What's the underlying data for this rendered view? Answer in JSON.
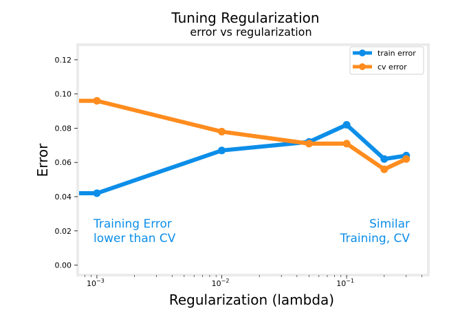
{
  "chart_data": {
    "type": "line",
    "title": "Tuning Regularization",
    "subtitle": "error vs regularization",
    "xlabel": "Regularization (lambda)",
    "ylabel": "Error",
    "xscale": "log",
    "xlim": [
      0.00072,
      0.44
    ],
    "ylim": [
      -0.005,
      0.128
    ],
    "grid": false,
    "legend_position": "top-right",
    "xticks": [
      {
        "value": 0.001,
        "base": "10",
        "exp": "−3"
      },
      {
        "value": 0.01,
        "base": "10",
        "exp": "−2"
      },
      {
        "value": 0.1,
        "base": "10",
        "exp": "−1"
      }
    ],
    "yticks": [
      {
        "value": 0.0,
        "label": "0.00"
      },
      {
        "value": 0.02,
        "label": "0.02"
      },
      {
        "value": 0.04,
        "label": "0.04"
      },
      {
        "value": 0.06,
        "label": "0.06"
      },
      {
        "value": 0.08,
        "label": "0.08"
      },
      {
        "value": 0.1,
        "label": "0.10"
      },
      {
        "value": 0.12,
        "label": "0.12"
      }
    ],
    "series": [
      {
        "name": "train error",
        "color": "#0c8ee8",
        "x": [
          0.0,
          0.001,
          0.01,
          0.05,
          0.1,
          0.2,
          0.3
        ],
        "y": [
          0.042,
          0.042,
          0.067,
          0.072,
          0.082,
          0.062,
          0.064
        ]
      },
      {
        "name": "cv error",
        "color": "#ff8c1e",
        "x": [
          0.0,
          0.001,
          0.01,
          0.05,
          0.1,
          0.2,
          0.3
        ],
        "y": [
          0.096,
          0.096,
          0.078,
          0.071,
          0.071,
          0.056,
          0.062
        ]
      }
    ],
    "annotations": [
      {
        "lines": [
          "Training Error",
          "lower than CV"
        ],
        "color": "#0c8ee8",
        "align": "left"
      },
      {
        "lines": [
          "Similar",
          "Training, CV"
        ],
        "color": "#0c8ee8",
        "align": "right"
      }
    ]
  }
}
